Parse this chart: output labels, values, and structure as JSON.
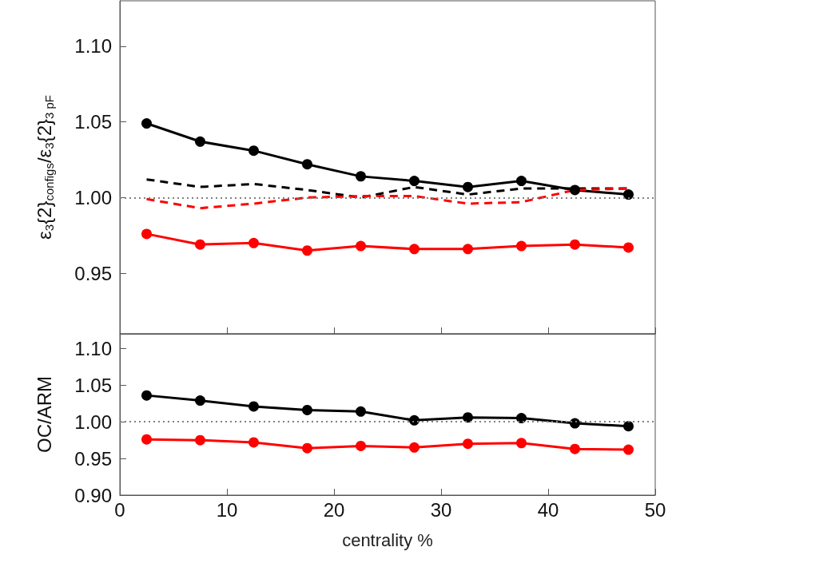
{
  "chart_data": [
    {
      "type": "line",
      "ylabel": "ε$_{3}${2}$_{configs}$/ε$_{3}${2}$_{3 pF}$",
      "x": [
        2.5,
        7.5,
        12.5,
        17.5,
        22.5,
        27.5,
        32.5,
        37.5,
        42.5,
        47.5
      ],
      "xlim": [
        0,
        50
      ],
      "xticks": [
        0,
        10,
        20,
        30,
        40,
        50
      ],
      "ylim": [
        0.91,
        1.13
      ],
      "yticks": [
        {
          "value": 0.95,
          "label": "0.95"
        },
        {
          "value": 1.0,
          "label": "1.00"
        },
        {
          "value": 1.05,
          "label": "1.05"
        },
        {
          "value": 1.1,
          "label": "1.10"
        }
      ],
      "tick_labels": "y",
      "ref_lines": [
        {
          "axis": "y",
          "value": 1.0,
          "color": "#808080",
          "line_style": "dotted"
        }
      ],
      "series": [
        {
          "color": "#000000",
          "marker": "circle",
          "line_style": "solid",
          "values": [
            1.049,
            1.037,
            1.031,
            1.022,
            1.014,
            1.011,
            1.007,
            1.011,
            1.005,
            1.002
          ]
        },
        {
          "color": "#ff0000",
          "marker": "circle",
          "line_style": "solid",
          "values": [
            0.976,
            0.969,
            0.97,
            0.965,
            0.968,
            0.966,
            0.966,
            0.968,
            0.969,
            0.967
          ]
        },
        {
          "color": "#000000",
          "marker": "none",
          "line_style": "dashed",
          "values": [
            1.012,
            1.007,
            1.009,
            1.005,
            1.0,
            1.007,
            1.002,
            1.006,
            1.006,
            1.006
          ]
        },
        {
          "color": "#ff0000",
          "marker": "none",
          "line_style": "dashed",
          "values": [
            0.999,
            0.993,
            0.996,
            1.0,
            1.001,
            1.001,
            0.996,
            0.997,
            1.005,
            1.006
          ]
        }
      ]
    },
    {
      "type": "line",
      "xlabel": "centrality %",
      "ylabel": "OC/ARM",
      "x": [
        2.5,
        7.5,
        12.5,
        17.5,
        22.5,
        27.5,
        32.5,
        37.5,
        42.5,
        47.5
      ],
      "xlim": [
        0,
        50
      ],
      "xticks": [
        0,
        10,
        20,
        30,
        40,
        50
      ],
      "ylim": [
        0.9,
        1.12
      ],
      "yticks": [
        {
          "value": 0.9,
          "label": "0.90"
        },
        {
          "value": 0.95,
          "label": "0.95"
        },
        {
          "value": 1.0,
          "label": "1.00"
        },
        {
          "value": 1.05,
          "label": "1.05"
        },
        {
          "value": 1.1,
          "label": "1.10"
        }
      ],
      "ref_lines": [
        {
          "axis": "y",
          "value": 1.0,
          "color": "#808080",
          "line_style": "dotted"
        }
      ],
      "series": [
        {
          "color": "#000000",
          "marker": "circle",
          "line_style": "solid",
          "values": [
            1.036,
            1.029,
            1.021,
            1.016,
            1.014,
            1.002,
            1.006,
            1.005,
            0.998,
            0.994
          ]
        },
        {
          "color": "#ff0000",
          "marker": "circle",
          "line_style": "solid",
          "values": [
            0.976,
            0.975,
            0.972,
            0.964,
            0.967,
            0.965,
            0.97,
            0.971,
            0.963,
            0.962
          ]
        }
      ]
    }
  ]
}
